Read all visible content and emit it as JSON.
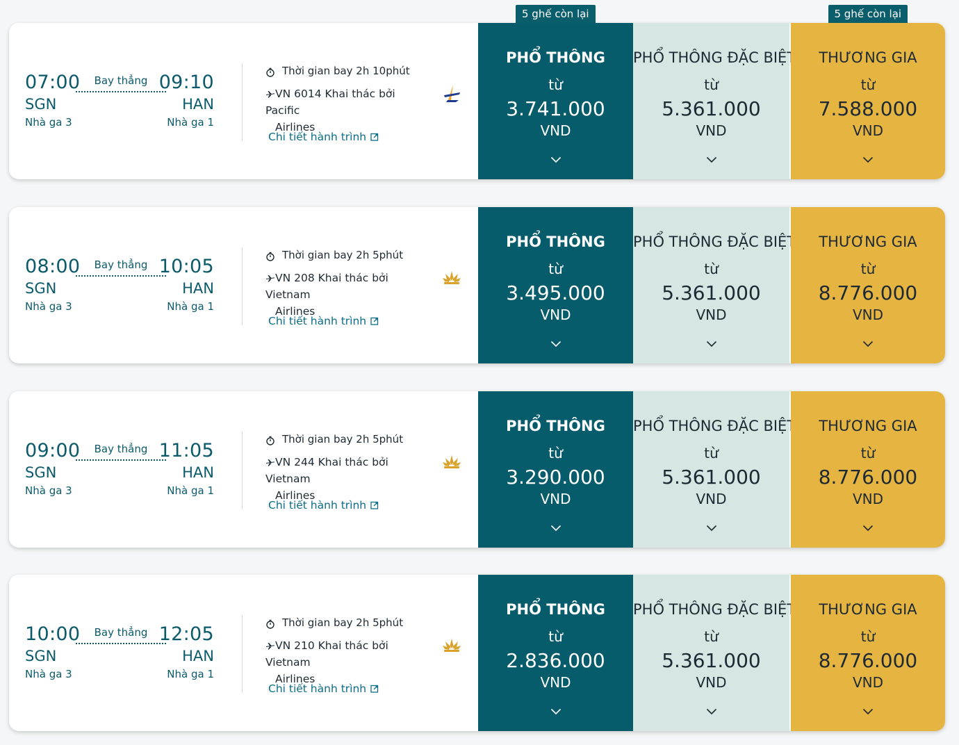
{
  "colors": {
    "brand_teal": "#075c6b",
    "deluxe_bg": "#d5e6e3",
    "business_gold": "#e6b441",
    "link": "#0b6d8a"
  },
  "flights": [
    {
      "dep_time": "07:00",
      "dep_code": "SGN",
      "dep_terminal": "Nhà ga 3",
      "direct_label": "Bay thẳng",
      "arr_time": "09:10",
      "arr_code": "HAN",
      "arr_terminal": "Nhà ga 1",
      "duration": "Thời gian bay 2h 10phút",
      "flight_line1": "VN 6014 Khai thác bởi Pacific",
      "flight_line2": "Airlines",
      "airline_icon": "pacific-airlines-logo",
      "details_link": "Chi tiết hành trình",
      "fares": [
        {
          "class": "PHỔ THÔNG",
          "from": "từ",
          "price": "3.741.000",
          "currency": "VND",
          "badge": "5 ghế còn lại"
        },
        {
          "class": "PHỔ THÔNG ĐẶC BIỆT",
          "from": "từ",
          "price": "5.361.000",
          "currency": "VND",
          "badge": ""
        },
        {
          "class": "THƯƠNG GIA",
          "from": "từ",
          "price": "7.588.000",
          "currency": "VND",
          "badge": "5 ghế còn lại"
        }
      ]
    },
    {
      "dep_time": "08:00",
      "dep_code": "SGN",
      "dep_terminal": "Nhà ga 3",
      "direct_label": "Bay thẳng",
      "arr_time": "10:05",
      "arr_code": "HAN",
      "arr_terminal": "Nhà ga 1",
      "duration": "Thời gian bay 2h 5phút",
      "flight_line1": "VN 208 Khai thác bởi Vietnam",
      "flight_line2": "Airlines",
      "airline_icon": "vietnam-airlines-lotus-logo",
      "details_link": "Chi tiết hành trình",
      "fares": [
        {
          "class": "PHỔ THÔNG",
          "from": "từ",
          "price": "3.495.000",
          "currency": "VND",
          "badge": ""
        },
        {
          "class": "PHỔ THÔNG ĐẶC BIỆT",
          "from": "từ",
          "price": "5.361.000",
          "currency": "VND",
          "badge": ""
        },
        {
          "class": "THƯƠNG GIA",
          "from": "từ",
          "price": "8.776.000",
          "currency": "VND",
          "badge": ""
        }
      ]
    },
    {
      "dep_time": "09:00",
      "dep_code": "SGN",
      "dep_terminal": "Nhà ga 3",
      "direct_label": "Bay thẳng",
      "arr_time": "11:05",
      "arr_code": "HAN",
      "arr_terminal": "Nhà ga 1",
      "duration": "Thời gian bay 2h 5phút",
      "flight_line1": "VN 244 Khai thác bởi Vietnam",
      "flight_line2": "Airlines",
      "airline_icon": "vietnam-airlines-lotus-logo",
      "details_link": "Chi tiết hành trình",
      "fares": [
        {
          "class": "PHỔ THÔNG",
          "from": "từ",
          "price": "3.290.000",
          "currency": "VND",
          "badge": ""
        },
        {
          "class": "PHỔ THÔNG ĐẶC BIỆT",
          "from": "từ",
          "price": "5.361.000",
          "currency": "VND",
          "badge": ""
        },
        {
          "class": "THƯƠNG GIA",
          "from": "từ",
          "price": "8.776.000",
          "currency": "VND",
          "badge": ""
        }
      ]
    },
    {
      "dep_time": "10:00",
      "dep_code": "SGN",
      "dep_terminal": "Nhà ga 3",
      "direct_label": "Bay thẳng",
      "arr_time": "12:05",
      "arr_code": "HAN",
      "arr_terminal": "Nhà ga 1",
      "duration": "Thời gian bay 2h 5phút",
      "flight_line1": "VN 210 Khai thác bởi Vietnam",
      "flight_line2": "Airlines",
      "airline_icon": "vietnam-airlines-lotus-logo",
      "details_link": "Chi tiết hành trình",
      "fares": [
        {
          "class": "PHỔ THÔNG",
          "from": "từ",
          "price": "2.836.000",
          "currency": "VND",
          "badge": ""
        },
        {
          "class": "PHỔ THÔNG ĐẶC BIỆT",
          "from": "từ",
          "price": "5.361.000",
          "currency": "VND",
          "badge": ""
        },
        {
          "class": "THƯƠNG GIA",
          "from": "từ",
          "price": "8.776.000",
          "currency": "VND",
          "badge": ""
        }
      ]
    }
  ]
}
